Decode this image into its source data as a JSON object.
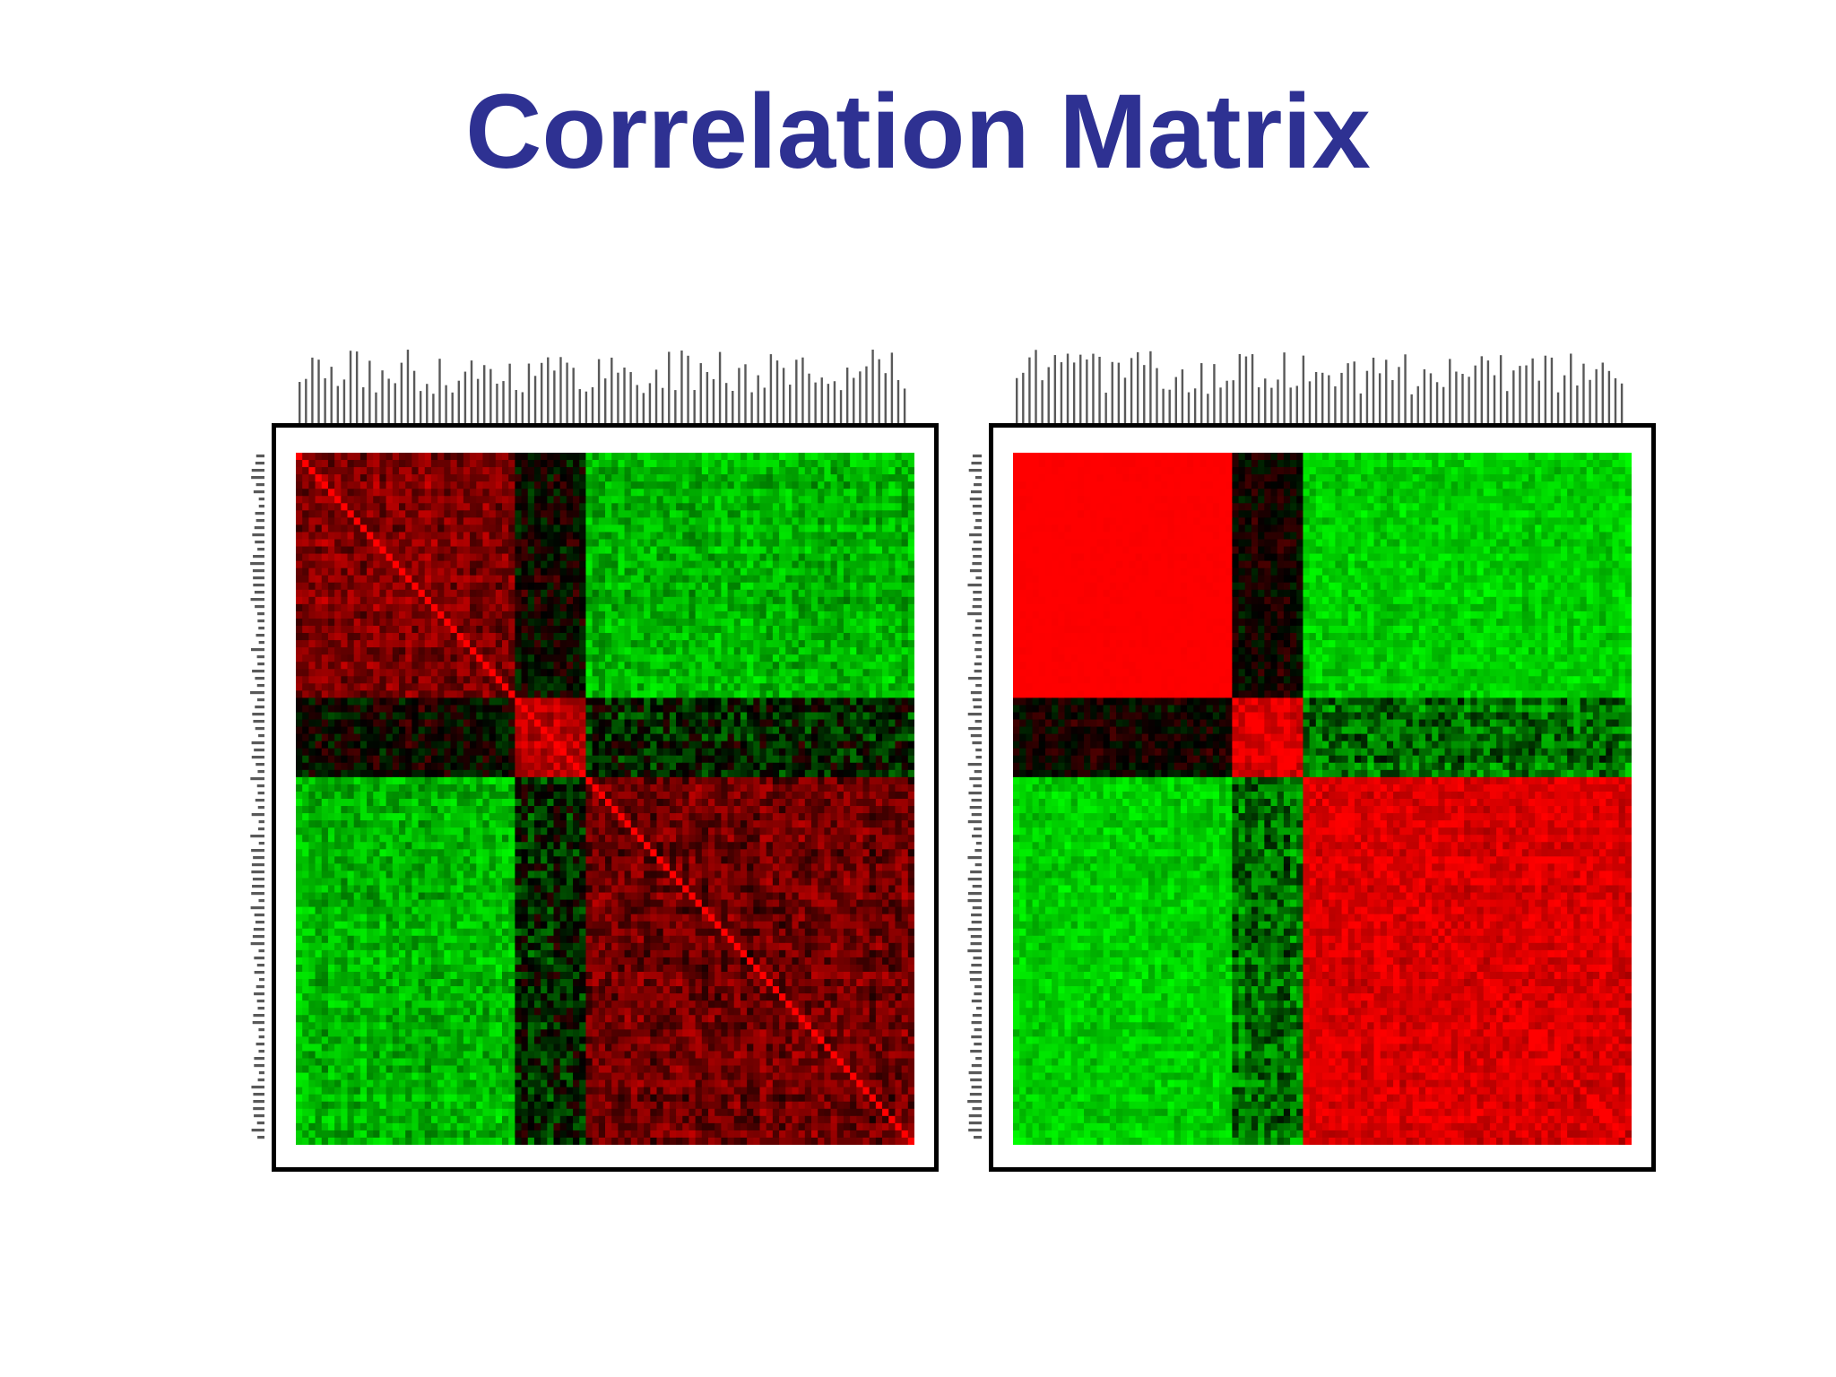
{
  "title": "Correlation Matrix",
  "colors": {
    "title": "#2e3192",
    "positive": "#ff0000",
    "negative": "#00ff00",
    "neutral": "#000000",
    "frame": "#000000",
    "background": "#ffffff"
  },
  "chart_data": [
    {
      "type": "heatmap",
      "title": "",
      "xlabel": "",
      "ylabel": "",
      "n": 96,
      "color_scale": {
        "low": "#00ff00",
        "mid": "#000000",
        "high": "#ff0000",
        "range": [
          -1,
          1
        ]
      },
      "blocks": [
        {
          "rows": [
            0,
            33
          ],
          "cols": [
            0,
            33
          ],
          "mean": 0.5,
          "noise": 0.22
        },
        {
          "rows": [
            0,
            33
          ],
          "cols": [
            34,
            44
          ],
          "mean": 0.0,
          "noise": 0.25
        },
        {
          "rows": [
            0,
            33
          ],
          "cols": [
            45,
            95
          ],
          "mean": -0.72,
          "noise": 0.2
        },
        {
          "rows": [
            34,
            44
          ],
          "cols": [
            0,
            33
          ],
          "mean": 0.0,
          "noise": 0.25
        },
        {
          "rows": [
            34,
            44
          ],
          "cols": [
            34,
            44
          ],
          "mean": 0.7,
          "noise": 0.2
        },
        {
          "rows": [
            34,
            44
          ],
          "cols": [
            45,
            95
          ],
          "mean": -0.15,
          "noise": 0.3
        },
        {
          "rows": [
            45,
            95
          ],
          "cols": [
            0,
            33
          ],
          "mean": -0.72,
          "noise": 0.2
        },
        {
          "rows": [
            45,
            95
          ],
          "cols": [
            34,
            44
          ],
          "mean": -0.15,
          "noise": 0.3
        },
        {
          "rows": [
            45,
            95
          ],
          "cols": [
            45,
            95
          ],
          "mean": 0.42,
          "noise": 0.25
        }
      ],
      "diagonal": 1.0
    },
    {
      "type": "heatmap",
      "title": "",
      "xlabel": "",
      "ylabel": "",
      "n": 96,
      "color_scale": {
        "low": "#00ff00",
        "mid": "#000000",
        "high": "#ff0000",
        "range": [
          -1,
          1
        ]
      },
      "blocks": [
        {
          "rows": [
            0,
            33
          ],
          "cols": [
            0,
            33
          ],
          "mean": 1.0,
          "noise": 0.02
        },
        {
          "rows": [
            0,
            33
          ],
          "cols": [
            34,
            44
          ],
          "mean": 0.05,
          "noise": 0.2
        },
        {
          "rows": [
            0,
            33
          ],
          "cols": [
            45,
            95
          ],
          "mean": -0.82,
          "noise": 0.15
        },
        {
          "rows": [
            34,
            44
          ],
          "cols": [
            0,
            33
          ],
          "mean": 0.2,
          "noise": 0.25
        },
        {
          "rows": [
            34,
            44
          ],
          "cols": [
            34,
            44
          ],
          "mean": 0.85,
          "noise": 0.15
        },
        {
          "rows": [
            34,
            44
          ],
          "cols": [
            45,
            95
          ],
          "mean": -0.45,
          "noise": 0.3
        },
        {
          "rows": [
            45,
            95
          ],
          "cols": [
            0,
            33
          ],
          "mean": -0.82,
          "noise": 0.15
        },
        {
          "rows": [
            45,
            95
          ],
          "cols": [
            34,
            44
          ],
          "mean": -0.35,
          "noise": 0.3
        },
        {
          "rows": [
            45,
            95
          ],
          "cols": [
            45,
            95
          ],
          "mean": 0.85,
          "noise": 0.15
        }
      ],
      "diagonal": 1.0
    }
  ]
}
